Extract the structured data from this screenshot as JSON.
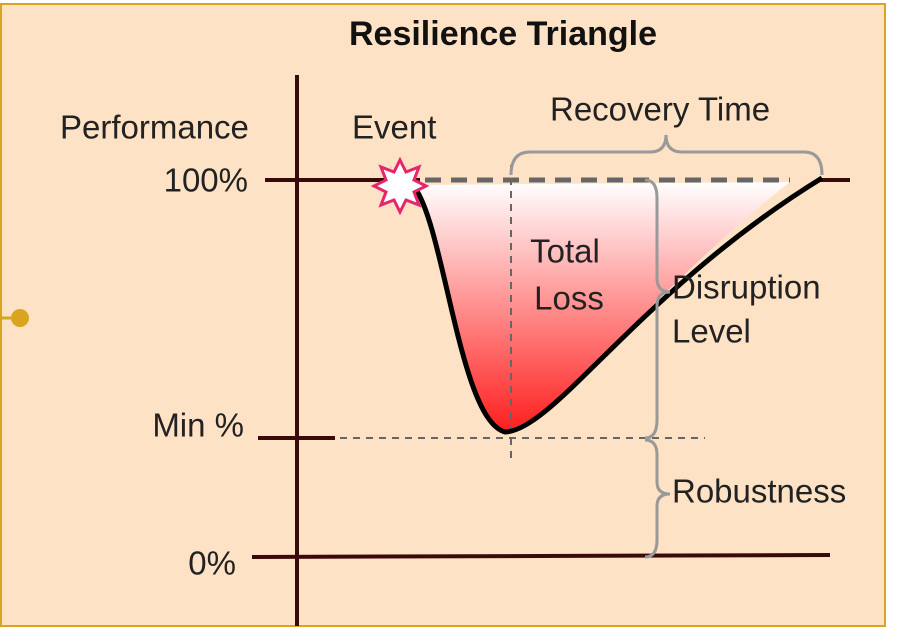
{
  "title": "Resilience Triangle",
  "axis": {
    "label": "Performance",
    "levels": [
      "100%",
      "Min %",
      "0%"
    ]
  },
  "annotations": {
    "event": "Event",
    "recovery_time": "Recovery Time",
    "total_loss": [
      "Total",
      "Loss"
    ],
    "disruption_level": [
      "Disruption",
      "Level"
    ],
    "robustness": "Robustness"
  }
}
